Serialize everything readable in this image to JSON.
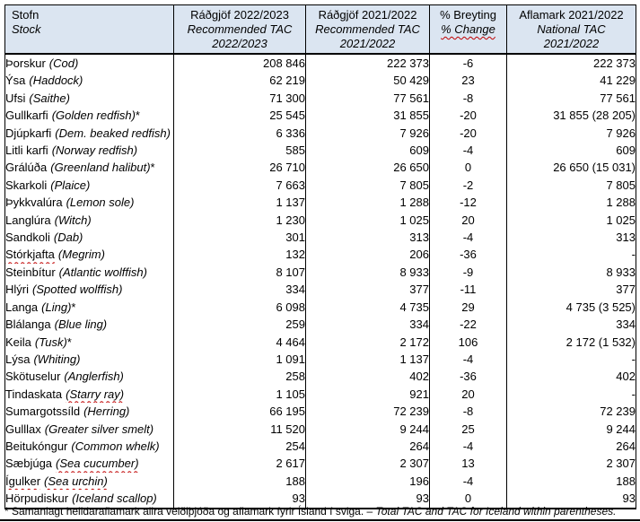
{
  "colors": {
    "header_bg": "#dbe5f1",
    "border": "#000000",
    "text": "#000000",
    "squiggle": "#c00000"
  },
  "table": {
    "header": {
      "stofn": {
        "line1": "Stofn",
        "line2": "Stock"
      },
      "rec2223": {
        "line1": "Ráðgjöf 2022/2023",
        "line2": "Recommended TAC",
        "line3": "2022/2023"
      },
      "rec2122": {
        "line1": "Ráðgjöf 2021/2022",
        "line2": "Recommended TAC",
        "line3": "2021/2022"
      },
      "change": {
        "line1": "% Breyting",
        "line2": "% Change"
      },
      "aflamark": {
        "line1": "Aflamark 2021/2022",
        "line2": "National TAC",
        "line3": "2021/2022"
      }
    },
    "rows": [
      {
        "stofn": "Þorskur",
        "stock": "(Cod)",
        "star": "",
        "rec2223": "208 846",
        "rec2122": "222 373",
        "change": "-6",
        "national": "222 373",
        "sq_is": false,
        "sq_en": false
      },
      {
        "stofn": "Ýsa",
        "stock": "(Haddock)",
        "star": "",
        "rec2223": "62 219",
        "rec2122": "50 429",
        "change": "23",
        "national": "41 229",
        "sq_is": false,
        "sq_en": false
      },
      {
        "stofn": "Ufsi",
        "stock": "(Saithe)",
        "star": "",
        "rec2223": "71 300",
        "rec2122": "77 561",
        "change": "-8",
        "national": "77 561",
        "sq_is": false,
        "sq_en": false
      },
      {
        "stofn": "Gullkarfi",
        "stock": "(Golden redfish)",
        "star": "*",
        "rec2223": "25 545",
        "rec2122": "31 855",
        "change": "-20",
        "national": "31 855 (28 205)",
        "sq_is": false,
        "sq_en": false
      },
      {
        "stofn": "Djúpkarfi",
        "stock": "(Dem. beaked redfish)",
        "star": "",
        "rec2223": "6 336",
        "rec2122": "7 926",
        "change": "-20",
        "national": "7 926",
        "sq_is": false,
        "sq_en": false
      },
      {
        "stofn": "Litli karfi",
        "stock": "(Norway redfish)",
        "star": "",
        "rec2223": "585",
        "rec2122": "609",
        "change": "-4",
        "national": "609",
        "sq_is": false,
        "sq_en": false
      },
      {
        "stofn": "Grálúða",
        "stock": "(Greenland halibut)",
        "star": "*",
        "rec2223": "26 710",
        "rec2122": "26 650",
        "change": "0",
        "national": "26 650 (15 031)",
        "sq_is": false,
        "sq_en": false
      },
      {
        "stofn": "Skarkoli",
        "stock": "(Plaice)",
        "star": "",
        "rec2223": "7 663",
        "rec2122": "7 805",
        "change": "-2",
        "national": "7 805",
        "sq_is": false,
        "sq_en": false
      },
      {
        "stofn": "Þykkvalúra",
        "stock": "(Lemon sole)",
        "star": "",
        "rec2223": "1 137",
        "rec2122": "1 288",
        "change": "-12",
        "national": "1 288",
        "sq_is": false,
        "sq_en": false
      },
      {
        "stofn": "Langlúra",
        "stock": "(Witch)",
        "star": "",
        "rec2223": "1 230",
        "rec2122": "1 025",
        "change": "20",
        "national": "1 025",
        "sq_is": false,
        "sq_en": false
      },
      {
        "stofn": "Sandkoli",
        "stock": "(Dab)",
        "star": "",
        "rec2223": "301",
        "rec2122": "313",
        "change": "-4",
        "national": "313",
        "sq_is": false,
        "sq_en": false
      },
      {
        "stofn": "Stórkjafta",
        "stock": "(Megrim)",
        "star": "",
        "rec2223": "132",
        "rec2122": "206",
        "change": "-36",
        "national": "-",
        "sq_is": true,
        "sq_en": false
      },
      {
        "stofn": "Steinbítur",
        "stock": "(Atlantic wolffish)",
        "star": "",
        "rec2223": "8 107",
        "rec2122": "8 933",
        "change": "-9",
        "national": "8 933",
        "sq_is": false,
        "sq_en": false
      },
      {
        "stofn": "Hlýri",
        "stock": "(Spotted wolffish)",
        "star": "",
        "rec2223": "334",
        "rec2122": "377",
        "change": "-11",
        "national": "377",
        "sq_is": false,
        "sq_en": false
      },
      {
        "stofn": "Langa",
        "stock": "(Ling)",
        "star": "*",
        "rec2223": "6 098",
        "rec2122": "4 735",
        "change": "29",
        "national": "4 735 (3 525)",
        "sq_is": false,
        "sq_en": false
      },
      {
        "stofn": "Blálanga",
        "stock": "(Blue ling)",
        "star": "",
        "rec2223": "259",
        "rec2122": "334",
        "change": "-22",
        "national": "334",
        "sq_is": false,
        "sq_en": false
      },
      {
        "stofn": "Keila",
        "stock": "(Tusk)",
        "star": "*",
        "rec2223": "4 464",
        "rec2122": "2 172",
        "change": "106",
        "national": "2 172 (1 532)",
        "sq_is": false,
        "sq_en": false
      },
      {
        "stofn": "Lýsa",
        "stock": "(Whiting)",
        "star": "",
        "rec2223": "1 091",
        "rec2122": "1 137",
        "change": "-4",
        "national": "-",
        "sq_is": false,
        "sq_en": false
      },
      {
        "stofn": "Skötuselur",
        "stock": "(Anglerfish)",
        "star": "",
        "rec2223": "258",
        "rec2122": "402",
        "change": "-36",
        "national": "402",
        "sq_is": false,
        "sq_en": false
      },
      {
        "stofn": "Tindaskata",
        "stock": "(Starry ray)",
        "star": "",
        "rec2223": "1 105",
        "rec2122": "921",
        "change": "20",
        "national": "-",
        "sq_is": false,
        "sq_en": true
      },
      {
        "stofn": "Sumargotssíld",
        "stock": "(Herring)",
        "star": "",
        "rec2223": "66 195",
        "rec2122": "72 239",
        "change": "-8",
        "national": "72 239",
        "sq_is": false,
        "sq_en": false
      },
      {
        "stofn": "Gulllax",
        "stock": "(Greater silver smelt)",
        "star": "",
        "rec2223": "11 520",
        "rec2122": "9 244",
        "change": "25",
        "national": "9 244",
        "sq_is": false,
        "sq_en": false
      },
      {
        "stofn": "Beitukóngur",
        "stock": "(Common whelk)",
        "star": "",
        "rec2223": "254",
        "rec2122": "264",
        "change": "-4",
        "national": "264",
        "sq_is": false,
        "sq_en": false
      },
      {
        "stofn": "Sæbjúga",
        "stock": "(Sea cucumber)",
        "star": "",
        "rec2223": "2 617",
        "rec2122": "2 307",
        "change": "13",
        "national": "2 307",
        "sq_is": false,
        "sq_en": true
      },
      {
        "stofn": "Ígulker",
        "stock": "(Sea urchin)",
        "star": "",
        "rec2223": "188",
        "rec2122": "196",
        "change": "-4",
        "national": "188",
        "sq_is": true,
        "sq_en": true
      },
      {
        "stofn": "Hörpudiskur",
        "stock": "(Iceland scallop)",
        "star": "",
        "rec2223": "93",
        "rec2122": "93",
        "change": "0",
        "national": "93",
        "sq_is": false,
        "sq_en": false
      }
    ]
  },
  "footnote": {
    "icelandic": "* Samanlagt heildaraflamark allra veiðiþjóða og aflamark fyrir Ísland í sviga. – ",
    "english": "Total TAC and TAC for Iceland within parentheses."
  }
}
